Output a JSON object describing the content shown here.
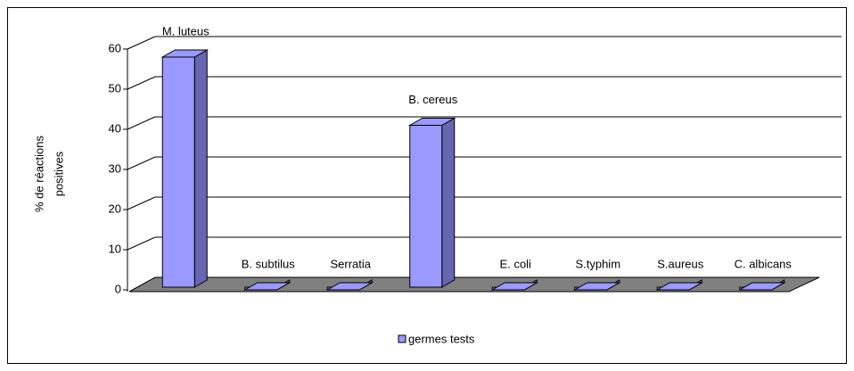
{
  "chart_data": {
    "type": "bar3d",
    "y_label": [
      "% de réactions",
      "positives"
    ],
    "categories": [
      "M. luteus",
      "B. subtilus",
      "Serratia",
      "B. cereus",
      "E. coli",
      "S.typhim",
      "S.aureus",
      "C. albicans"
    ],
    "series": [
      {
        "name": "germes tests",
        "color": "#9999ff",
        "values": [
          58,
          0,
          0,
          41,
          0,
          0,
          0,
          0
        ]
      }
    ],
    "ylim": [
      0,
      60
    ],
    "yticks": [
      0,
      10,
      20,
      30,
      40,
      50,
      60
    ],
    "grid": true,
    "legend": "bottom"
  }
}
